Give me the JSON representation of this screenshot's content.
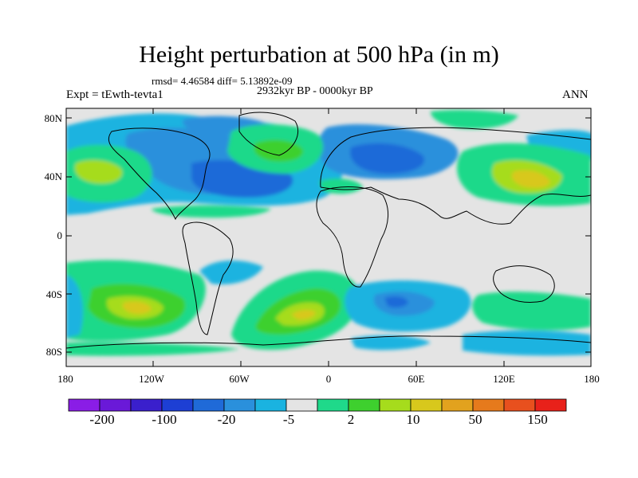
{
  "title": "Height perturbation at 500 hPa (in m)",
  "stats": "rmsd= 4.46584 diff= 5.13892e-09",
  "period": "2932kyr BP - 0000kyr BP",
  "experiment": "Expt = tEwth-tevta1",
  "season": "ANN",
  "lat_labels": [
    "80N",
    "40N",
    "0",
    "40S",
    "80S"
  ],
  "lon_labels": [
    "180",
    "120W",
    "60W",
    "0",
    "60E",
    "120E",
    "180"
  ],
  "colorbar": {
    "colors": [
      "#8a1de6",
      "#6a19d8",
      "#3a1fcc",
      "#1d3fd4",
      "#1f6ad8",
      "#2a90dc",
      "#1ab3e0",
      "#e4e4e4",
      "#1fd98a",
      "#3ed02e",
      "#a6dc1c",
      "#d8c81c",
      "#e2a21e",
      "#e67a1c",
      "#e8501e",
      "#e8211a"
    ],
    "labels": [
      "-200",
      "-100",
      "-20",
      "-5",
      "2",
      "10",
      "50",
      "150"
    ]
  }
}
